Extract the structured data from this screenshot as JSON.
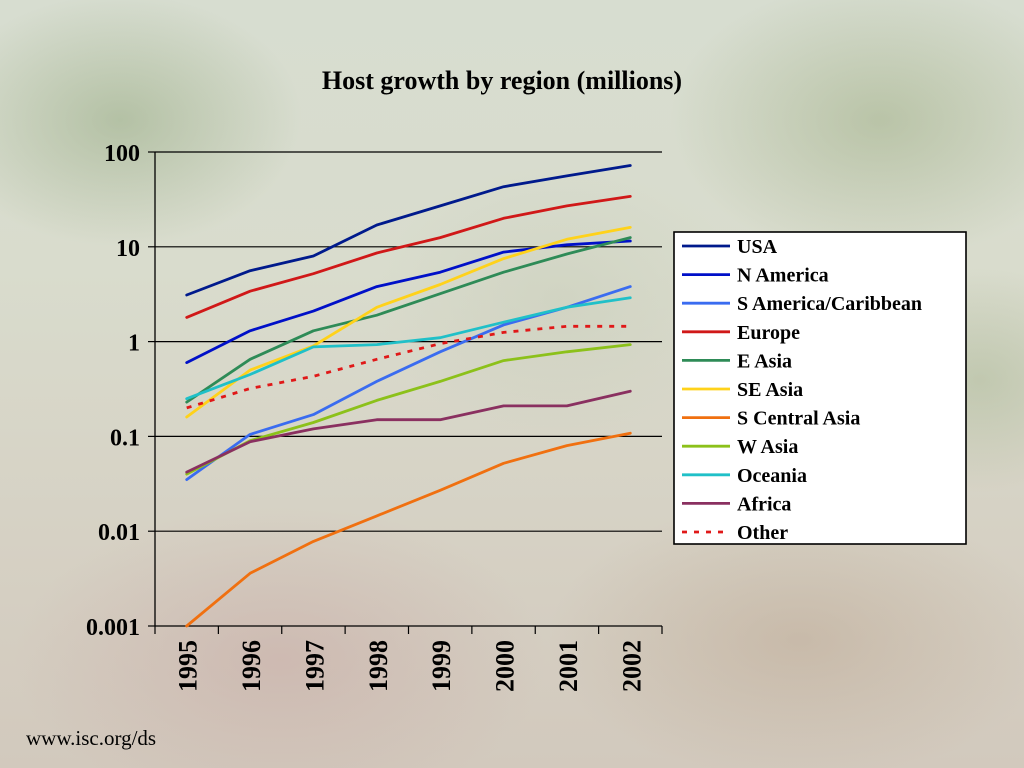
{
  "source_url": "www.isc.org/ds",
  "chart_data": {
    "type": "line",
    "title": "Host growth by region (millions)",
    "xlabel": "",
    "ylabel": "",
    "x": [
      "1995",
      "1996",
      "1997",
      "1998",
      "1999",
      "2000",
      "2001",
      "2002"
    ],
    "y_scale": "log",
    "ylim": [
      0.001,
      100
    ],
    "y_ticks": [
      "0.001",
      "0.01",
      "0.1",
      "1",
      "10",
      "100"
    ],
    "grid": "horizontal major gridlines",
    "legend_position": "right",
    "series": [
      {
        "name": "USA",
        "color": "#001a8c",
        "dashed": false,
        "values": [
          3.1,
          5.6,
          8.0,
          17,
          27,
          43,
          56,
          72
        ]
      },
      {
        "name": "N America",
        "color": "#0010c8",
        "dashed": false,
        "values": [
          0.6,
          1.3,
          2.1,
          3.8,
          5.4,
          8.8,
          10.5,
          11.5
        ]
      },
      {
        "name": "S America/Caribbean",
        "color": "#3a6cf0",
        "dashed": false,
        "values": [
          0.035,
          0.105,
          0.17,
          0.38,
          0.78,
          1.5,
          2.3,
          3.8
        ]
      },
      {
        "name": "Europe",
        "color": "#d01818",
        "dashed": false,
        "values": [
          1.8,
          3.4,
          5.2,
          8.6,
          12.5,
          20,
          27,
          34
        ]
      },
      {
        "name": "E Asia",
        "color": "#2e8b57",
        "dashed": false,
        "values": [
          0.23,
          0.65,
          1.3,
          1.9,
          3.2,
          5.4,
          8.4,
          12.5
        ]
      },
      {
        "name": "SE Asia",
        "color": "#ffd21a",
        "dashed": false,
        "values": [
          0.16,
          0.5,
          0.9,
          2.3,
          4.0,
          7.5,
          12,
          16
        ]
      },
      {
        "name": "S Central Asia",
        "color": "#f07010",
        "dashed": false,
        "values": [
          0.001,
          0.0036,
          0.0078,
          0.0145,
          0.027,
          0.052,
          0.08,
          0.108
        ]
      },
      {
        "name": "W Asia",
        "color": "#8cc11a",
        "dashed": false,
        "values": [
          0.04,
          0.09,
          0.14,
          0.24,
          0.38,
          0.63,
          0.78,
          0.93
        ]
      },
      {
        "name": "Oceania",
        "color": "#20c0c8",
        "dashed": false,
        "values": [
          0.25,
          0.45,
          0.88,
          0.93,
          1.1,
          1.6,
          2.3,
          2.9
        ]
      },
      {
        "name": "Africa",
        "color": "#8a3060",
        "dashed": false,
        "values": [
          0.042,
          0.088,
          0.12,
          0.15,
          0.15,
          0.21,
          0.21,
          0.3
        ]
      },
      {
        "name": "Other",
        "color": "#e01818",
        "dashed": true,
        "values": [
          0.2,
          0.32,
          0.43,
          0.65,
          0.95,
          1.25,
          1.45,
          1.45
        ]
      }
    ]
  }
}
